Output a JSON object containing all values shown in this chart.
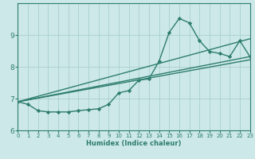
{
  "xlabel": "Humidex (Indice chaleur)",
  "ylabel": "",
  "bg_color": "#cce8e8",
  "grid_color": "#aacfcf",
  "line_color": "#2e7d6e",
  "xlim": [
    0,
    23
  ],
  "ylim": [
    6,
    10
  ],
  "yticks": [
    6,
    7,
    8,
    9
  ],
  "xticks": [
    0,
    1,
    2,
    3,
    4,
    5,
    6,
    7,
    8,
    9,
    10,
    11,
    12,
    13,
    14,
    15,
    16,
    17,
    18,
    19,
    20,
    21,
    22,
    23
  ],
  "series": [
    {
      "x": [
        0,
        1,
        2,
        3,
        4,
        5,
        6,
        7,
        8,
        9,
        10,
        11,
        12,
        13,
        14,
        15,
        16,
        17,
        18,
        19,
        20,
        21,
        22,
        23
      ],
      "y": [
        6.9,
        6.82,
        6.62,
        6.58,
        6.58,
        6.58,
        6.62,
        6.65,
        6.68,
        6.82,
        7.18,
        7.25,
        7.58,
        7.62,
        8.18,
        9.08,
        9.52,
        9.38,
        8.82,
        8.48,
        8.42,
        8.32,
        8.82,
        8.32
      ],
      "marker": "D",
      "marker_size": 2.2,
      "linewidth": 1.0,
      "has_marker": true
    },
    {
      "x": [
        0,
        23
      ],
      "y": [
        6.9,
        8.32
      ],
      "has_marker": false,
      "linewidth": 1.0
    },
    {
      "x": [
        0,
        23
      ],
      "y": [
        6.9,
        8.22
      ],
      "has_marker": false,
      "linewidth": 1.0
    },
    {
      "x": [
        0,
        23
      ],
      "y": [
        6.9,
        8.88
      ],
      "has_marker": false,
      "linewidth": 1.0
    }
  ]
}
